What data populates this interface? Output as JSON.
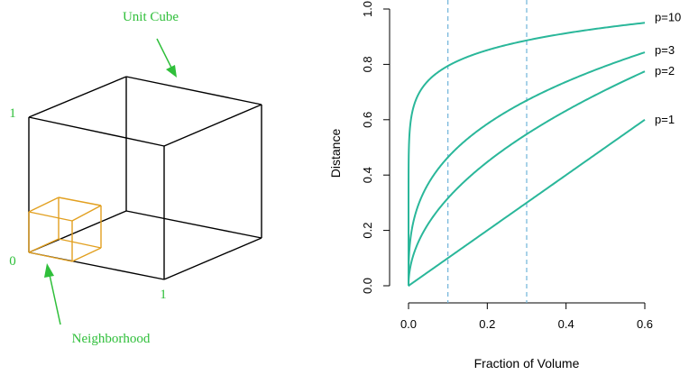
{
  "colors": {
    "label_green": "#2fbf3a",
    "curve": "#2ab79a",
    "vline": "#6fb3d9",
    "cube": "#000000",
    "neighborhood": "#e2a020"
  },
  "cube_diagram": {
    "title": "Unit Cube",
    "label_one_top": "1",
    "label_zero": "0",
    "label_one_bottom": "1",
    "neighborhood_label": "Neighborhood"
  },
  "chart_data": {
    "type": "line",
    "xlabel": "Fraction of Volume",
    "ylabel": "Distance",
    "xlim": [
      0,
      0.66
    ],
    "ylim": [
      0,
      1.0
    ],
    "xticks": [
      0.0,
      0.2,
      0.4,
      0.6
    ],
    "xtick_labels": [
      "0.0",
      "0.2",
      "0.4",
      "0.6"
    ],
    "yticks": [
      0.0,
      0.2,
      0.4,
      0.6,
      0.8,
      1.0
    ],
    "ytick_labels": [
      "0.0",
      "0.2",
      "0.4",
      "0.6",
      "0.8",
      "1.0"
    ],
    "vertical_lines": [
      0.1,
      0.3
    ],
    "grid": false,
    "series": [
      {
        "name": "p=10",
        "exponent": 10,
        "x": [
          0,
          0.005,
          0.01,
          0.05,
          0.1,
          0.2,
          0.3,
          0.4,
          0.5,
          0.6
        ],
        "y": [
          0,
          0.589,
          0.631,
          0.741,
          0.794,
          0.851,
          0.887,
          0.912,
          0.933,
          0.95
        ]
      },
      {
        "name": "p=3",
        "exponent": 3,
        "x": [
          0,
          0.005,
          0.01,
          0.05,
          0.1,
          0.2,
          0.3,
          0.4,
          0.5,
          0.6
        ],
        "y": [
          0,
          0.171,
          0.215,
          0.368,
          0.464,
          0.585,
          0.669,
          0.737,
          0.794,
          0.843
        ]
      },
      {
        "name": "p=2",
        "exponent": 2,
        "x": [
          0,
          0.005,
          0.01,
          0.05,
          0.1,
          0.2,
          0.3,
          0.4,
          0.5,
          0.6
        ],
        "y": [
          0,
          0.071,
          0.1,
          0.224,
          0.316,
          0.447,
          0.548,
          0.632,
          0.707,
          0.775
        ]
      },
      {
        "name": "p=1",
        "exponent": 1,
        "x": [
          0,
          0.1,
          0.2,
          0.3,
          0.4,
          0.5,
          0.6
        ],
        "y": [
          0,
          0.1,
          0.2,
          0.3,
          0.4,
          0.5,
          0.6
        ]
      }
    ]
  }
}
